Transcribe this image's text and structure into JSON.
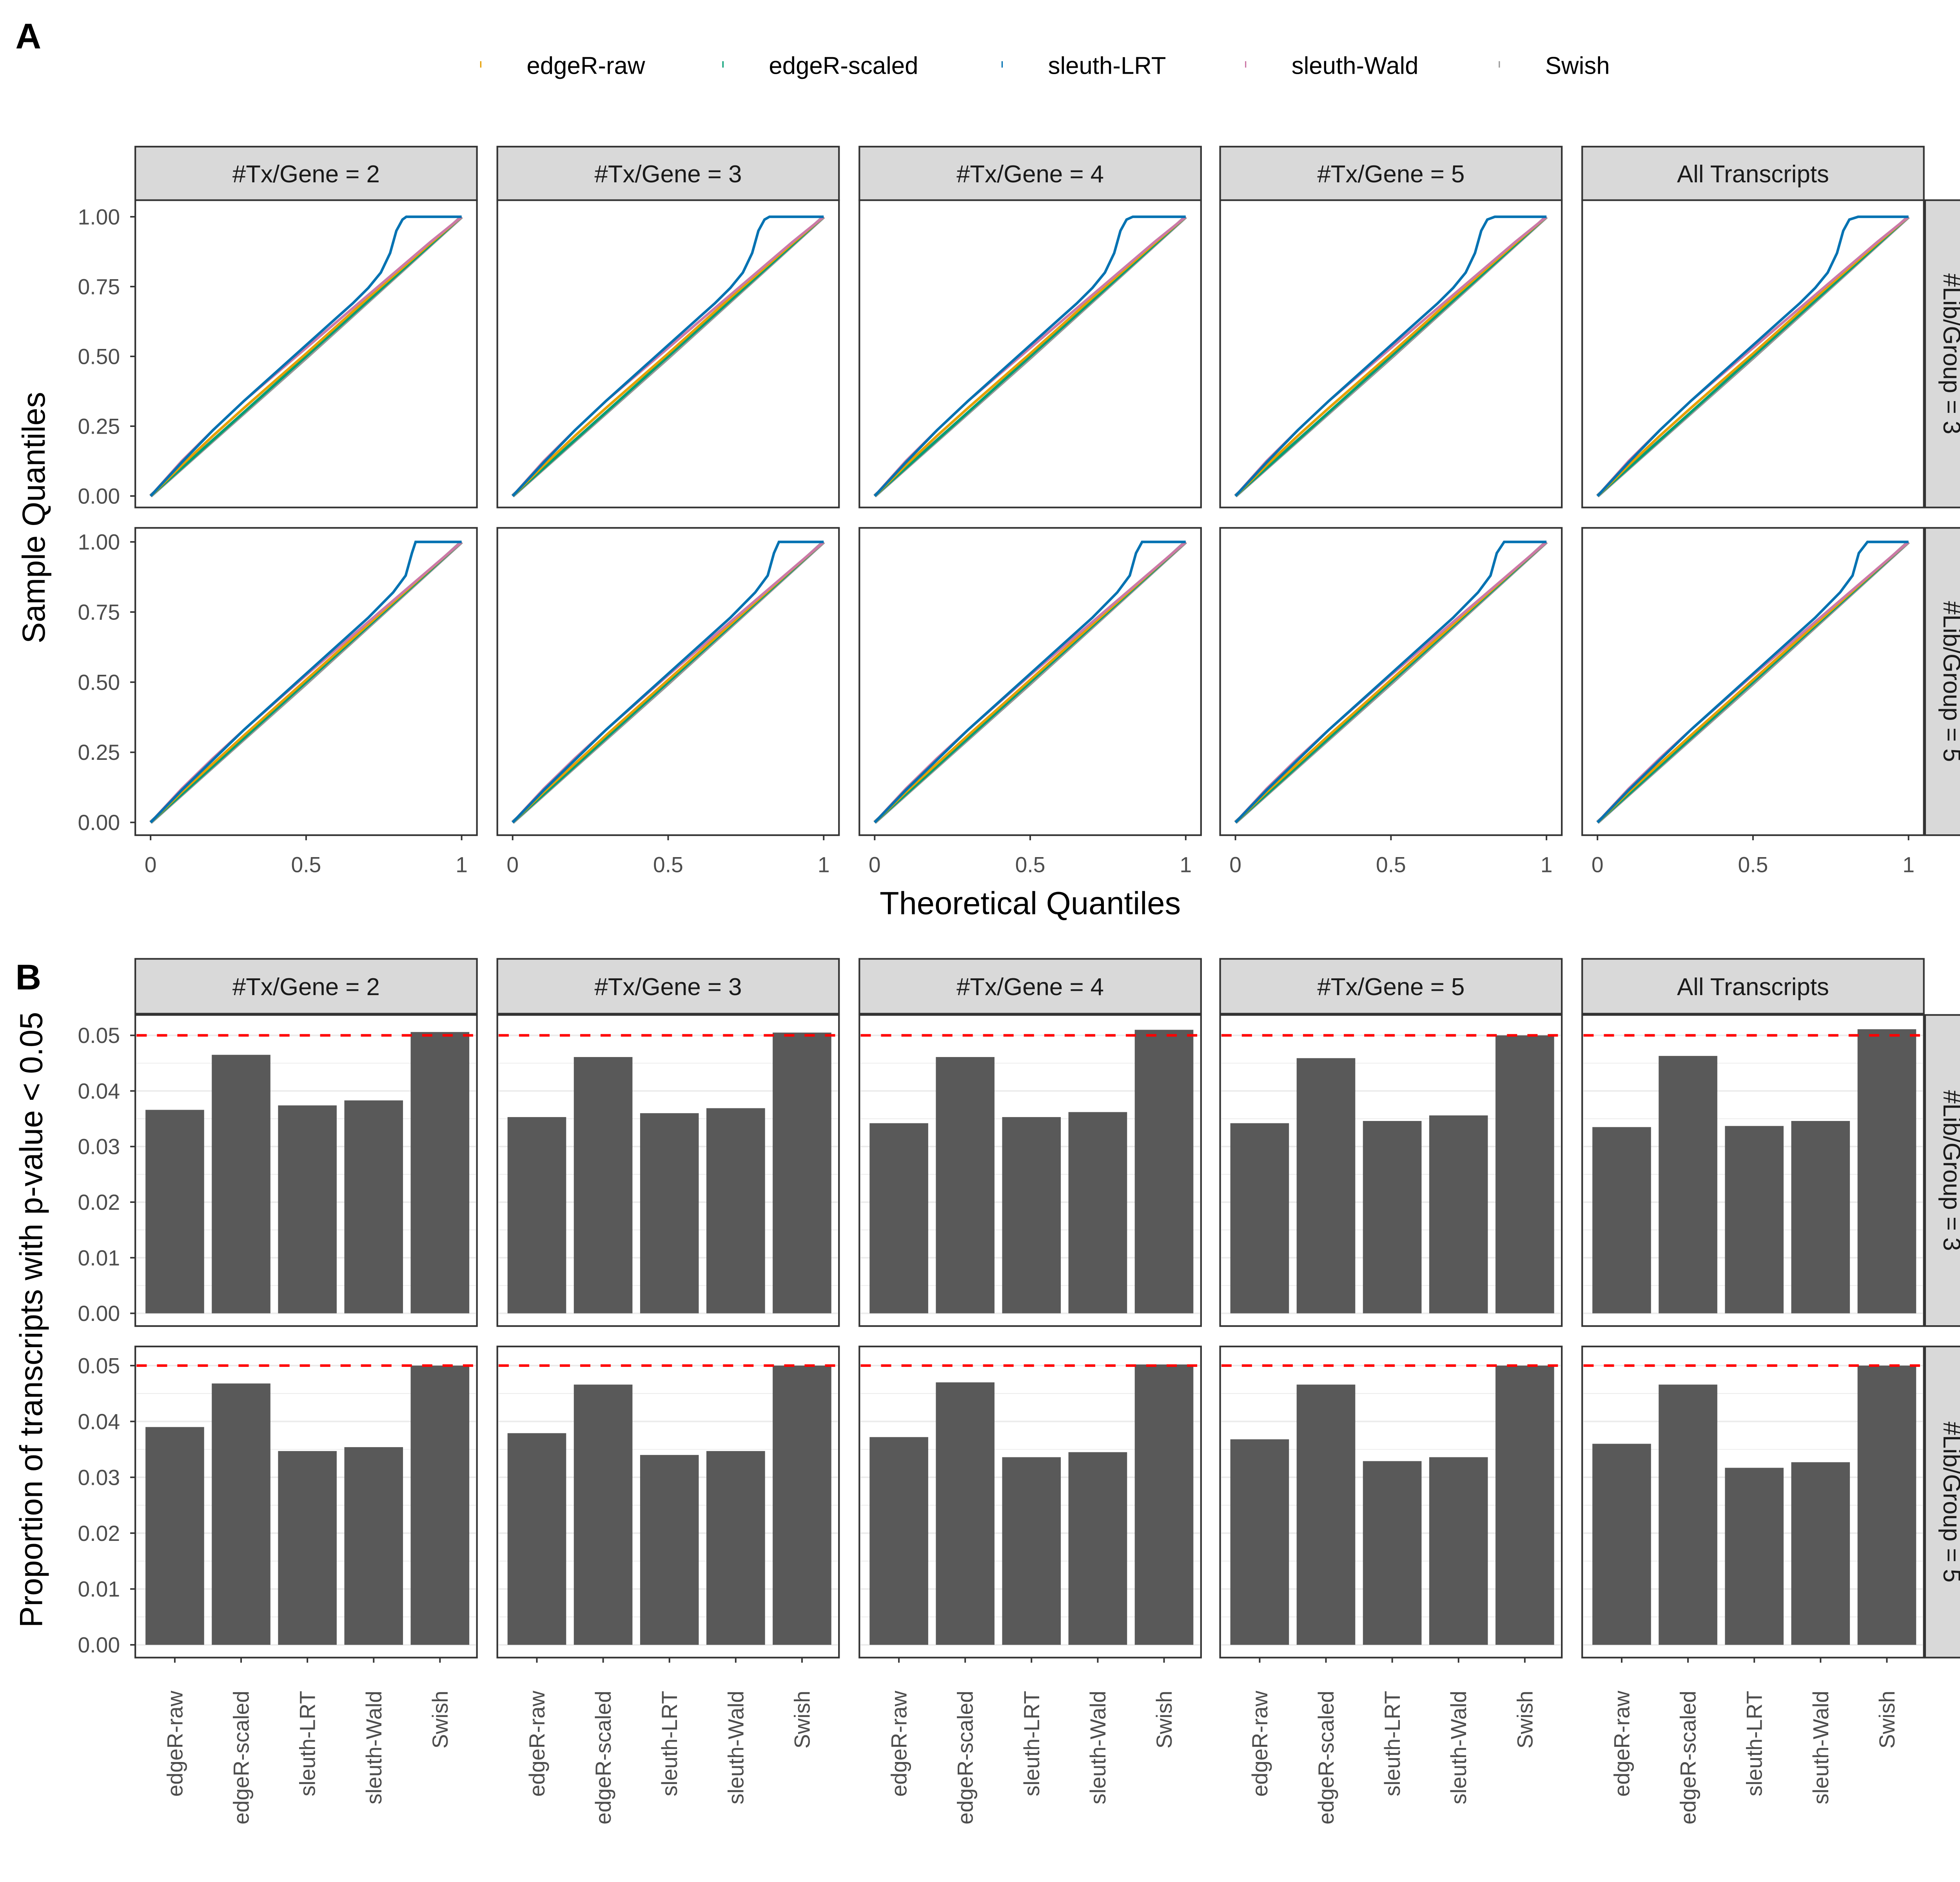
{
  "panel_labels": {
    "a": "A",
    "b": "B"
  },
  "legend": [
    {
      "name": "edgeR-raw",
      "color": "#E69F00"
    },
    {
      "name": "edgeR-scaled",
      "color": "#009E73"
    },
    {
      "name": "sleuth-LRT",
      "color": "#0072B2"
    },
    {
      "name": "sleuth-Wald",
      "color": "#CC79A7"
    },
    {
      "name": "Swish",
      "color": "#999999"
    }
  ],
  "chart_data": [
    {
      "type": "line",
      "panel": "A",
      "xlabel": "Theoretical Quantiles",
      "ylabel": "Sample Quantiles",
      "xlim": [
        0,
        1
      ],
      "ylim": [
        0,
        1
      ],
      "x_ticks": [
        "0",
        "0.5",
        "1"
      ],
      "y_ticks": [
        "0.00",
        "0.25",
        "0.50",
        "0.75",
        "1.00"
      ],
      "columns": [
        "#Tx/Gene = 2",
        "#Tx/Gene = 3",
        "#Tx/Gene = 4",
        "#Tx/Gene = 5",
        "All Transcripts"
      ],
      "rows": [
        "#Lib/Group = 3",
        "#Lib/Group = 5"
      ],
      "grid": false,
      "series_by_row": [
        [
          {
            "name": "Swish",
            "x": [
              0,
              0.5,
              1
            ],
            "y": [
              0,
              0.495,
              1
            ]
          },
          {
            "name": "edgeR-scaled",
            "x": [
              0,
              0.25,
              0.5,
              0.75,
              1
            ],
            "y": [
              0,
              0.25,
              0.5,
              0.75,
              1
            ]
          },
          {
            "name": "edgeR-raw",
            "x": [
              0,
              0.1,
              0.2,
              0.3,
              0.5,
              0.7,
              0.9,
              1
            ],
            "y": [
              0,
              0.11,
              0.215,
              0.315,
              0.51,
              0.71,
              0.905,
              1
            ]
          },
          {
            "name": "sleuth-Wald",
            "x": [
              0,
              0.1,
              0.2,
              0.3,
              0.4,
              0.5,
              0.6,
              0.7,
              0.8,
              0.9,
              1
            ],
            "y": [
              0,
              0.125,
              0.235,
              0.34,
              0.435,
              0.53,
              0.625,
              0.72,
              0.815,
              0.91,
              1
            ]
          },
          {
            "name": "sleuth-LRT",
            "x": [
              0,
              0.1,
              0.2,
              0.3,
              0.4,
              0.5,
              0.6,
              0.65,
              0.7,
              0.74,
              0.77,
              0.79,
              0.81,
              0.83,
              1
            ],
            "y": [
              0,
              0.12,
              0.235,
              0.34,
              0.44,
              0.54,
              0.64,
              0.69,
              0.745,
              0.8,
              0.87,
              0.95,
              0.99,
              1,
              1
            ]
          }
        ],
        [
          {
            "name": "Swish",
            "x": [
              0,
              0.5,
              1
            ],
            "y": [
              0,
              0.495,
              1
            ]
          },
          {
            "name": "edgeR-scaled",
            "x": [
              0,
              0.25,
              0.5,
              0.75,
              1
            ],
            "y": [
              0,
              0.25,
              0.5,
              0.75,
              1
            ]
          },
          {
            "name": "edgeR-raw",
            "x": [
              0,
              0.1,
              0.3,
              0.5,
              0.7,
              0.9,
              1
            ],
            "y": [
              0,
              0.108,
              0.31,
              0.508,
              0.706,
              0.903,
              1
            ]
          },
          {
            "name": "sleuth-Wald",
            "x": [
              0,
              0.1,
              0.2,
              0.3,
              0.5,
              0.7,
              0.9,
              1
            ],
            "y": [
              0,
              0.12,
              0.228,
              0.33,
              0.525,
              0.715,
              0.905,
              1
            ]
          },
          {
            "name": "sleuth-LRT",
            "x": [
              0,
              0.1,
              0.3,
              0.5,
              0.7,
              0.78,
              0.82,
              0.84,
              0.86,
              1
            ],
            "y": [
              0,
              0.115,
              0.33,
              0.53,
              0.73,
              0.82,
              0.88,
              0.96,
              1,
              1
            ]
          }
        ]
      ]
    },
    {
      "type": "bar",
      "panel": "B",
      "xlabel": "",
      "ylabel": "Proportion of transcripts with p-value < 0.05",
      "ylim": [
        0,
        0.0525
      ],
      "y_ticks": [
        "0.00",
        "0.01",
        "0.02",
        "0.03",
        "0.04",
        "0.05"
      ],
      "reference_line": {
        "y": 0.05,
        "color": "#FF0000",
        "style": "dashed"
      },
      "categories": [
        "edgeR-raw",
        "edgeR-scaled",
        "sleuth-LRT",
        "sleuth-Wald",
        "Swish"
      ],
      "columns": [
        "#Tx/Gene = 2",
        "#Tx/Gene = 3",
        "#Tx/Gene = 4",
        "#Tx/Gene = 5",
        "All Transcripts"
      ],
      "rows": [
        "#Lib/Group = 3",
        "#Lib/Group = 5"
      ],
      "bar_color": "#595959",
      "values": [
        [
          [
            0.0366,
            0.0465,
            0.0374,
            0.0383,
            0.0506
          ],
          [
            0.0353,
            0.0461,
            0.036,
            0.0369,
            0.0505
          ],
          [
            0.0342,
            0.0461,
            0.0353,
            0.0362,
            0.051
          ],
          [
            0.0342,
            0.0459,
            0.0346,
            0.0356,
            0.05
          ],
          [
            0.0335,
            0.0463,
            0.0337,
            0.0346,
            0.0511
          ]
        ],
        [
          [
            0.039,
            0.0468,
            0.0347,
            0.0354,
            0.05
          ],
          [
            0.0379,
            0.0466,
            0.034,
            0.0347,
            0.05
          ],
          [
            0.0372,
            0.047,
            0.0336,
            0.0345,
            0.0502
          ],
          [
            0.0368,
            0.0466,
            0.0329,
            0.0336,
            0.05
          ],
          [
            0.036,
            0.0466,
            0.0317,
            0.0327,
            0.05
          ]
        ]
      ]
    }
  ]
}
